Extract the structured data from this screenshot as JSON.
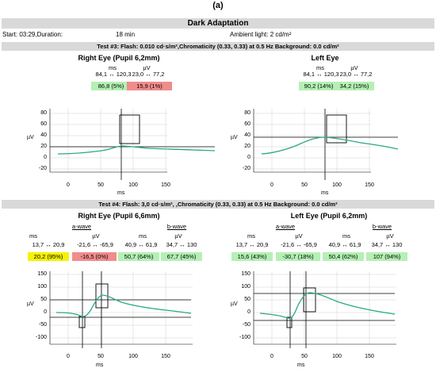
{
  "figure_label": "(a)",
  "header": {
    "title": "Dark Adaptation",
    "start_label": "Start: 03:29,Duration:",
    "duration": "18 min",
    "ambient": "Ambient light: 2 cd/m²"
  },
  "tests": [
    {
      "title": "Test #3:  Flash: 0.010 cd·s/m²,Chromaticity (0.33, 0.33) at 0.5 Hz  Background: 0.0 cd/m²",
      "eyes": [
        {
          "title": "Right Eye (Pupil 6,2mm)",
          "col_units": [
            "ms",
            "µV"
          ],
          "ranges": [
            "84,1 ↔ 120,3",
            "23,0 ↔ 77,2"
          ],
          "cells": [
            "86,8 (5%)",
            "15,9 (1%)"
          ]
        },
        {
          "title": "Left Eye",
          "col_units": [
            "ms",
            "µV"
          ],
          "ranges": [
            "84,1 ↔ 120,3",
            "23,0 ↔ 77,2"
          ],
          "cells": [
            "90,2 (14%)",
            "34,2 (15%)"
          ]
        }
      ],
      "axes": {
        "y_ticks": [
          "80",
          "60",
          "40",
          "20",
          "0",
          "-20"
        ],
        "x_ticks": [
          "0",
          "50",
          "100",
          "150"
        ],
        "y_unit": "µV",
        "x_unit": "ms"
      }
    },
    {
      "title": "Test #4:  Flash:  3,0 cd·s/m²,    ,Chromaticity (0.33, 0.33) at 0.5 Hz   Background: 0.0 cd/m²",
      "eyes": [
        {
          "title": "Right Eye (Pupil 6,6mm)",
          "wave_labels": [
            "a-wave",
            "b-wave"
          ],
          "col_units": [
            "ms",
            "µV",
            "ms",
            "µV"
          ],
          "ranges": [
            "13,7 ↔ 20,9",
            "-21,6 ↔ -65,9",
            "40,9 ↔ 61,9",
            "34,7 ↔ 130"
          ],
          "cells": [
            "20,2 (95%)",
            "-16,5 (0%)",
            "50,7 (64%)",
            "67,7 (45%)"
          ]
        },
        {
          "title": "Left Eye (Pupil 6,2mm)",
          "wave_labels": [
            "a-wave",
            "b-wave"
          ],
          "col_units": [
            "ms",
            "µV",
            "ms",
            "µV"
          ],
          "ranges": [
            "13,7 ↔ 20,9",
            "-21,6 ↔ -65,9",
            "40,9 ↔ 61,9",
            "34,7 ↔ 130"
          ],
          "cells": [
            "15,6 (43%)",
            "-30,7 (18%)",
            "50,4 (62%)",
            "107 (94%)"
          ]
        }
      ],
      "axes": {
        "y_ticks": [
          "150",
          "100",
          "50",
          "0",
          "-50",
          "-100"
        ],
        "x_ticks": [
          "0",
          "50",
          "100",
          "150"
        ],
        "y_unit": "µV",
        "x_unit": "ms"
      }
    }
  ],
  "colors": {
    "trace": "#2aa889",
    "good": "#b4f0b4",
    "bad": "#f08c8c",
    "warn": "#f6f200",
    "bar": "#d9d9d9"
  }
}
